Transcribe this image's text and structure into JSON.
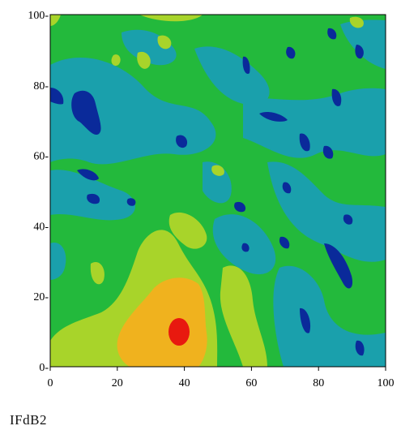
{
  "caption": "IFdB2",
  "chart_data": {
    "type": "heatmap",
    "title": "",
    "xlabel": "",
    "ylabel": "",
    "xlim": [
      0,
      100
    ],
    "ylim": [
      0,
      100
    ],
    "x_ticks": [
      0,
      20,
      40,
      60,
      80,
      100
    ],
    "y_ticks": [
      0,
      20,
      40,
      60,
      80,
      100
    ],
    "x_tick_labels": [
      "0",
      "20",
      "40",
      "60",
      "80",
      "100"
    ],
    "y_tick_labels": [
      "0-",
      "20-",
      "40-",
      "60-",
      "80-",
      "100-"
    ],
    "grid": false,
    "legend": "none",
    "colormap": [
      "#0a2a9a",
      "#1f6fc0",
      "#1aa0ac",
      "#1db34a",
      "#29c233",
      "#a8d42a",
      "#f0b21e",
      "#f06a12",
      "#e8190f"
    ],
    "background_level_color": "#23b93c",
    "regions": [
      {
        "level": "high",
        "color": "#ee1a10",
        "center": [
          39,
          9
        ],
        "radius": [
          3.5,
          3.5
        ]
      },
      {
        "level": "upper",
        "color": "#f3b51f",
        "center": [
          38,
          12
        ],
        "radius": [
          9,
          9
        ]
      },
      {
        "level": "mid",
        "color": "#a9d52b",
        "center": [
          35,
          18
        ],
        "radius": [
          16,
          16
        ]
      },
      {
        "level": "low",
        "color": "#1ba4aa",
        "center": [
          10,
          72
        ],
        "radius": [
          6,
          6
        ]
      },
      {
        "level": "lowest",
        "color": "#0a2a9a",
        "center": [
          10,
          72
        ],
        "radius": [
          3,
          4
        ]
      }
    ]
  }
}
